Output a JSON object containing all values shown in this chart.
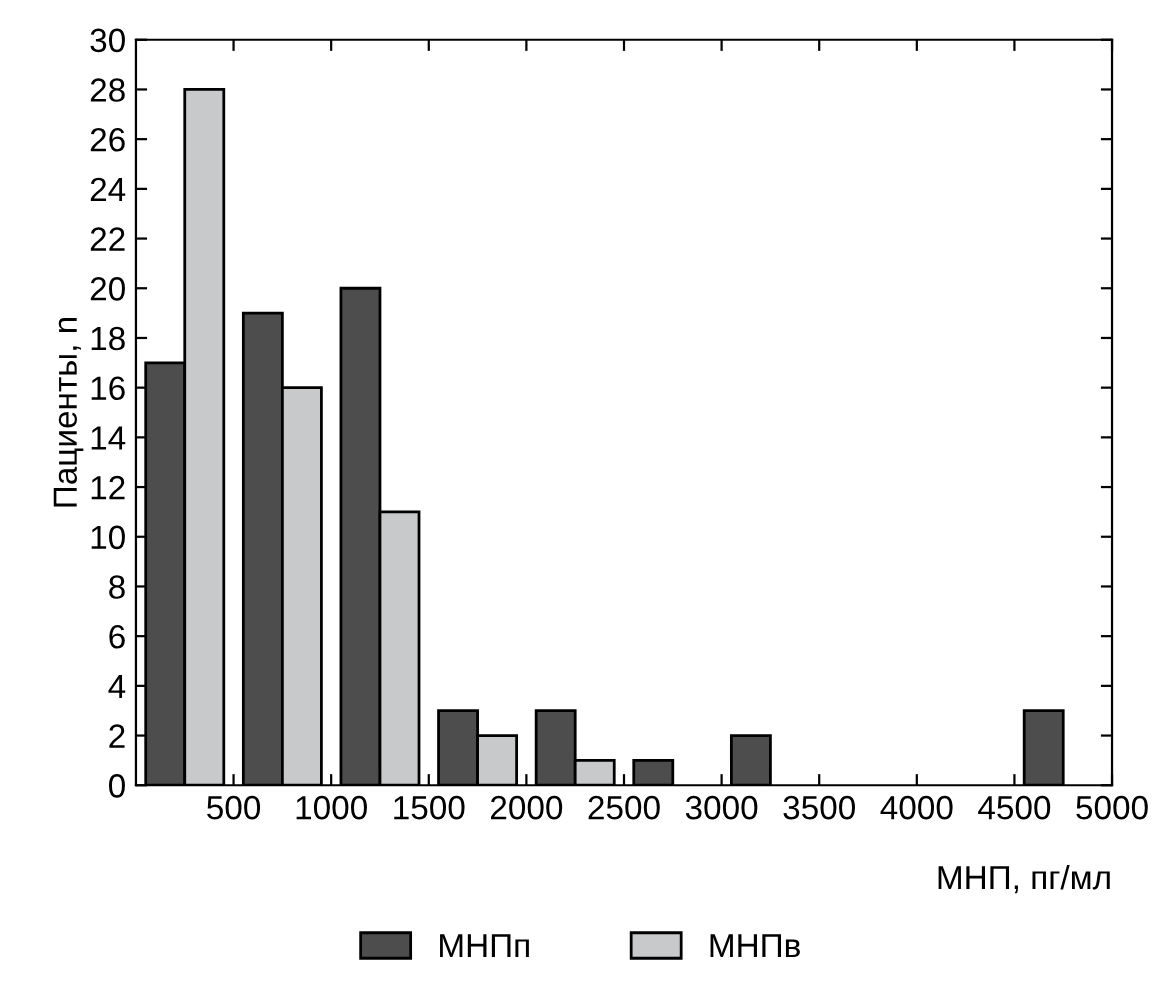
{
  "chart_data": {
    "type": "histogram",
    "xlabel": "МНП, пг/мл",
    "ylabel": "Пациенты, n",
    "bins": [
      0,
      500,
      1000,
      1500,
      2000,
      2500,
      3000,
      3500,
      4000,
      4500,
      5000
    ],
    "series": [
      {
        "name": "МНПп",
        "color": "#4d4d4d",
        "values": [
          17,
          19,
          20,
          3,
          3,
          1,
          2,
          0,
          0,
          3
        ]
      },
      {
        "name": "МНПв",
        "color": "#c8c9cb",
        "values": [
          28,
          16,
          11,
          2,
          1,
          0,
          0,
          0,
          0,
          0
        ]
      }
    ],
    "xlim": [
      0,
      5000
    ],
    "xticks": [
      500,
      1000,
      1500,
      2000,
      2500,
      3000,
      3500,
      4000,
      4500,
      5000
    ],
    "ylim": [
      0,
      30
    ],
    "yticks": [
      0,
      2,
      4,
      6,
      8,
      10,
      12,
      14,
      16,
      18,
      20,
      22,
      24,
      26,
      28,
      30
    ],
    "grid": false,
    "legend": "bottom"
  }
}
